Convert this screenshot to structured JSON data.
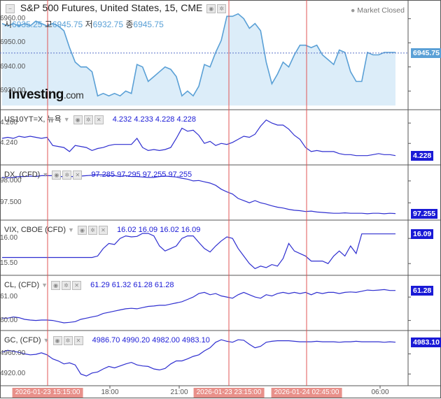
{
  "header": {
    "title": "S&P 500 Futures, United States, 15, CME",
    "status": "Market Closed",
    "ohlc": [
      {
        "key": "시",
        "value": "6935.25"
      },
      {
        "key": "고",
        "value": "6945.75"
      },
      {
        "key": "저",
        "value": "6932.75"
      },
      {
        "key": "종",
        "value": "6945.75"
      }
    ]
  },
  "logo": {
    "text": "Investing",
    "suffix": ".com"
  },
  "x_axis": {
    "ticks": [
      "18:00",
      "21:00",
      "06:00"
    ],
    "markers": [
      "2026-01-23 15:15:00",
      "2026-01-23 23:15:00",
      "2026-01-24 02:45:00"
    ]
  },
  "colors": {
    "main_line": "#5aa0d6",
    "main_fill": "#dcedf9",
    "series_line": "#2f2fd0",
    "marker": "#e05555",
    "tag": "#1a1ad6"
  },
  "panels": [
    {
      "name": "S&P 500 Futures",
      "labels": {
        "name": "",
        "values": ""
      },
      "ticks": [
        "6960.00",
        "6950.00",
        "6940.00",
        "6930.00"
      ],
      "tick_values": [
        6960,
        6950,
        6940,
        6930
      ],
      "last": "6945.75",
      "last_value": 6945.75,
      "ymin": 6924,
      "ymax": 6966
    },
    {
      "name": "US10YT=X",
      "labels": {
        "name": "US10YT=X, 뉴욕",
        "values": "4.232  4.233  4.228  4.228"
      },
      "ticks": [
        "4.260",
        "4.240"
      ],
      "tick_values": [
        4.26,
        4.24
      ],
      "last": "4.228",
      "last_value": 4.228,
      "ymin": 4.223,
      "ymax": 4.269
    },
    {
      "name": "DX",
      "labels": {
        "name": "DX, (CFD)",
        "values": "97.285  97.295  97.255  97.255"
      },
      "ticks": [
        "98.000",
        "97.500"
      ],
      "tick_values": [
        98.0,
        97.5
      ],
      "last": "97.255",
      "last_value": 97.255,
      "ymin": 97.2,
      "ymax": 98.27
    },
    {
      "name": "VIX",
      "labels": {
        "name": "VIX, CBOE (CFD)",
        "values": "16.02  16.09  16.02  16.09"
      },
      "ticks": [
        "16.00",
        "15.50"
      ],
      "tick_values": [
        16.0,
        15.5
      ],
      "last": "16.09",
      "last_value": 16.09,
      "ymin": 15.35,
      "ymax": 16.28
    },
    {
      "name": "CL",
      "labels": {
        "name": "CL, (CFD)",
        "values": "61.29  61.32  61.28  61.28"
      },
      "ticks": [
        "61.00",
        "60.00"
      ],
      "tick_values": [
        61.0,
        60.0
      ],
      "last": "61.28",
      "last_value": 61.28,
      "ymin": 59.75,
      "ymax": 61.75
    },
    {
      "name": "GC",
      "labels": {
        "name": "GC, (CFD)",
        "values": "4986.70  4990.20  4982.00  4983.10"
      },
      "ticks": [
        "4960.00",
        "4920.00"
      ],
      "tick_values": [
        4960,
        4920
      ],
      "last": "4983.10",
      "last_value": 4983.1,
      "ymin": 4905,
      "ymax": 4998
    }
  ],
  "chart_data": {
    "type": "line",
    "x": [
      0,
      1,
      2,
      3,
      4,
      5,
      6,
      7,
      8,
      9,
      10,
      11,
      12,
      13,
      14,
      15,
      16,
      17,
      18,
      19,
      20,
      21,
      22,
      23,
      24,
      25,
      26,
      27,
      28,
      29,
      30,
      31,
      32,
      33,
      34,
      35,
      36,
      37,
      38,
      39,
      40,
      41,
      42,
      43,
      44,
      45,
      46,
      47,
      48,
      49,
      50,
      51,
      52,
      53,
      54,
      55,
      56,
      57,
      58,
      59,
      60,
      61,
      62,
      63,
      64,
      65,
      66,
      67,
      68,
      69,
      70
    ],
    "x_unit": "15-minute bars",
    "series": [
      {
        "name": "S&P 500 Futures",
        "values": [
          6958,
          6957,
          6958,
          6957,
          6958,
          6957,
          6959,
          6958,
          6957,
          6958,
          6957,
          6955,
          6948,
          6942,
          6940,
          6940,
          6938,
          6928,
          6929,
          6928,
          6929,
          6928,
          6930,
          6929,
          6941,
          6940,
          6934,
          6936,
          6938,
          6940,
          6939,
          6936,
          6928,
          6930,
          6928,
          6932,
          6941,
          6940,
          6946,
          6951,
          6961,
          6961,
          6962,
          6960,
          6956,
          6958,
          6955,
          6942,
          6933,
          6937,
          6942,
          6940,
          6945,
          6949,
          6949,
          6948,
          6949,
          6945,
          6943,
          6941,
          6947,
          6946,
          6938,
          6934,
          6934,
          6946,
          6945,
          6945,
          6946,
          6946,
          6946
        ]
      },
      {
        "name": "US10YT=X",
        "values": [
          4.245,
          4.246,
          4.245,
          4.247,
          4.246,
          4.247,
          4.246,
          4.245,
          4.246,
          4.238,
          4.237,
          4.236,
          4.232,
          4.238,
          4.237,
          4.236,
          4.233,
          4.235,
          4.236,
          4.238,
          4.239,
          4.239,
          4.239,
          4.239,
          4.245,
          4.236,
          4.233,
          4.234,
          4.233,
          4.234,
          4.236,
          4.245,
          4.255,
          4.252,
          4.253,
          4.248,
          4.24,
          4.242,
          4.238,
          4.24,
          4.239,
          4.241,
          4.244,
          4.247,
          4.246,
          4.249,
          4.257,
          4.263,
          4.26,
          4.258,
          4.258,
          4.254,
          4.248,
          4.244,
          4.236,
          4.232,
          4.233,
          4.232,
          4.232,
          4.232,
          4.23,
          4.229,
          4.229,
          4.228,
          4.228,
          4.228,
          4.229,
          4.23,
          4.229,
          4.229,
          4.228
        ]
      },
      {
        "name": "DX",
        "values": [
          98.08,
          98.07,
          98.08,
          98.1,
          98.1,
          98.11,
          98.1,
          98.12,
          98.12,
          98.12,
          98.1,
          98.1,
          98.1,
          98.1,
          98.11,
          98.12,
          98.13,
          98.14,
          98.14,
          98.12,
          98.12,
          98.1,
          98.12,
          98.1,
          98.1,
          98.09,
          98.08,
          98.08,
          98.1,
          98.11,
          98.1,
          98.09,
          98.06,
          98.04,
          98.0,
          98.01,
          97.98,
          97.95,
          97.9,
          97.81,
          97.75,
          97.7,
          97.6,
          97.55,
          97.5,
          97.55,
          97.5,
          97.47,
          97.43,
          97.4,
          97.38,
          97.35,
          97.33,
          97.32,
          97.3,
          97.31,
          97.29,
          97.28,
          97.27,
          97.26,
          97.26,
          97.27,
          97.26,
          97.26,
          97.26,
          97.25,
          97.26,
          97.26,
          97.25,
          97.26,
          97.255
        ]
      },
      {
        "name": "VIX",
        "values": [
          15.62,
          15.62,
          15.62,
          15.62,
          15.62,
          15.62,
          15.62,
          15.62,
          15.62,
          15.62,
          15.62,
          15.62,
          15.62,
          15.62,
          15.62,
          15.62,
          15.62,
          15.65,
          15.8,
          15.9,
          15.88,
          16.0,
          16.05,
          16.03,
          16.04,
          16.1,
          16.1,
          16.05,
          15.85,
          15.75,
          15.8,
          15.85,
          16.0,
          16.05,
          16.05,
          15.92,
          15.8,
          15.73,
          15.85,
          15.95,
          16.03,
          16.0,
          15.8,
          15.65,
          15.5,
          15.4,
          15.45,
          15.42,
          15.48,
          15.45,
          15.6,
          15.9,
          15.75,
          15.7,
          15.65,
          15.55,
          15.55,
          15.55,
          15.5,
          15.65,
          15.75,
          15.65,
          15.85,
          15.7,
          16.09,
          16.09,
          16.09,
          16.09,
          16.09,
          16.09,
          16.09
        ]
      },
      {
        "name": "CL",
        "values": [
          60.1,
          60.1,
          60.15,
          60.12,
          60.05,
          60.02,
          60.0,
          60.02,
          60.02,
          60.0,
          59.95,
          59.9,
          59.92,
          59.95,
          60.05,
          60.1,
          60.15,
          60.2,
          60.3,
          60.35,
          60.4,
          60.45,
          60.5,
          60.52,
          60.5,
          60.55,
          60.6,
          60.62,
          60.65,
          60.65,
          60.7,
          60.75,
          60.8,
          60.9,
          61.0,
          61.15,
          61.2,
          61.1,
          61.15,
          61.05,
          61.0,
          60.95,
          61.1,
          61.2,
          61.1,
          61.0,
          60.95,
          61.1,
          61.05,
          61.15,
          61.2,
          61.15,
          61.2,
          61.15,
          61.2,
          61.1,
          61.2,
          61.15,
          61.2,
          61.2,
          61.15,
          61.2,
          61.22,
          61.2,
          61.25,
          61.3,
          61.28,
          61.3,
          61.32,
          61.28,
          61.28
        ]
      },
      {
        "name": "GC",
        "values": [
          4963,
          4967,
          4965,
          4963,
          4960,
          4958,
          4959,
          4962,
          4958,
          4950,
          4946,
          4940,
          4942,
          4938,
          4920,
          4916,
          4922,
          4924,
          4930,
          4935,
          4932,
          4936,
          4940,
          4943,
          4938,
          4936,
          4935,
          4930,
          4928,
          4931,
          4940,
          4946,
          4946,
          4950,
          4955,
          4958,
          4966,
          4972,
          4983,
          4988,
          4985,
          4983,
          4988,
          4987,
          4979,
          4972,
          4975,
          4983,
          4985,
          4986,
          4986,
          4986,
          4985,
          4984,
          4984,
          4984,
          4985,
          4984,
          4984,
          4984,
          4983,
          4984,
          4984,
          4985,
          4984,
          4984,
          4984,
          4984,
          4983,
          4984,
          4983.1
        ]
      }
    ]
  }
}
